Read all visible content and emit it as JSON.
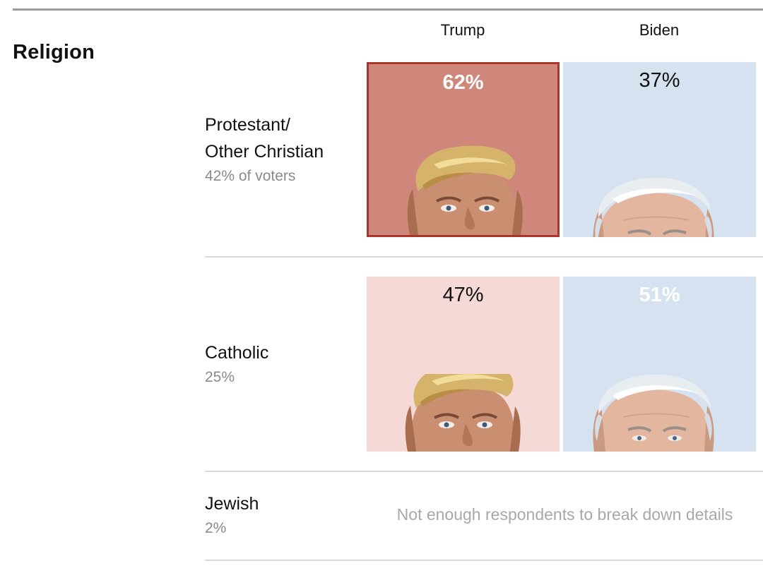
{
  "section": {
    "title": "Religion"
  },
  "columns": {
    "trump": "Trump",
    "biden": "Biden"
  },
  "colors": {
    "trump_win_fill": "#cf877b",
    "trump_win_border": "#a9352b",
    "trump_fill": "#f5d9d6",
    "biden_fill": "#d6e2f0",
    "divider": "#dcdcdc"
  },
  "rows": [
    {
      "label": "Protestant/\nOther Christian",
      "share": "42% of voters",
      "trump": {
        "pct_label": "62%",
        "winner": true
      },
      "biden": {
        "pct_label": "37%",
        "winner": false
      }
    },
    {
      "label": "Catholic",
      "share": "25%",
      "trump": {
        "pct_label": "47%",
        "winner": false
      },
      "biden": {
        "pct_label": "51%",
        "winner": true
      }
    },
    {
      "label": "Jewish",
      "share": "2%",
      "note": "Not enough respondents to break down details"
    }
  ],
  "chart_data": {
    "type": "bar",
    "title": "Religion",
    "series_names": [
      "Trump",
      "Biden"
    ],
    "categories": [
      "Protestant/ Other Christian",
      "Catholic",
      "Jewish"
    ],
    "category_share": [
      "42% of voters",
      "25%",
      "2%"
    ],
    "series": [
      {
        "name": "Trump",
        "values": [
          62,
          47,
          null
        ]
      },
      {
        "name": "Biden",
        "values": [
          37,
          51,
          null
        ]
      }
    ],
    "note": "Not enough respondents to break down details"
  }
}
